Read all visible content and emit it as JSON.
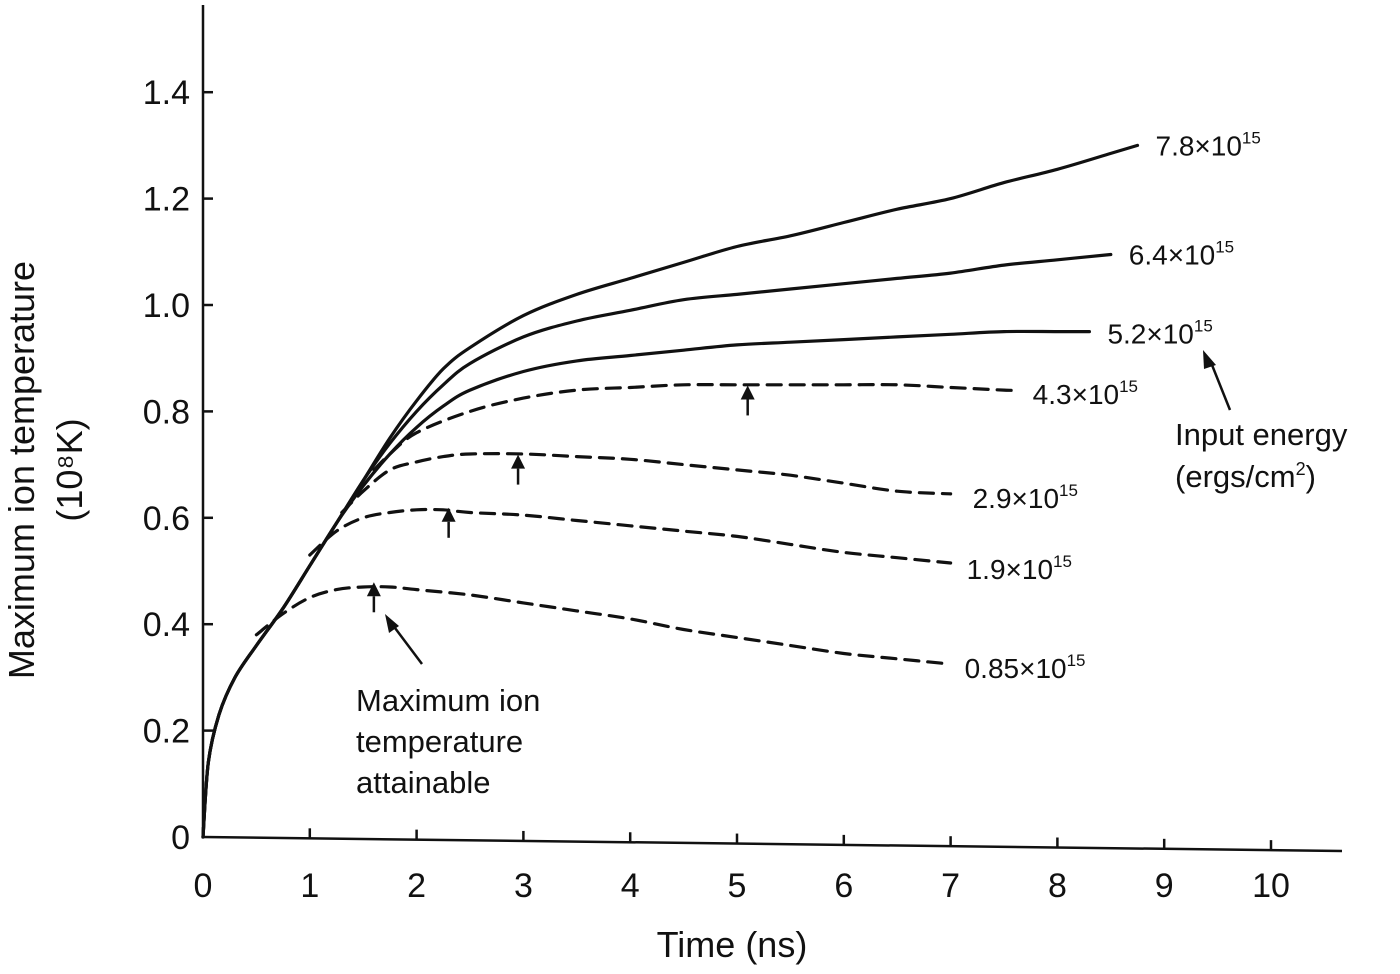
{
  "chart_data": {
    "type": "line",
    "title": "",
    "xlabel": "Time (ns)",
    "ylabel_lines": [
      "Maximum ion temperature",
      "(10⁸K)"
    ],
    "xlim": [
      0,
      10.7
    ],
    "ylim": [
      0,
      1.55
    ],
    "x_ticks": [
      0,
      1,
      2,
      3,
      4,
      5,
      6,
      7,
      8,
      9,
      10
    ],
    "y_ticks": [
      0,
      0.2,
      0.4,
      0.6,
      0.8,
      1.0,
      1.2,
      1.4
    ],
    "y_tick_labels": [
      "0",
      "0.2",
      "0.4",
      "0.6",
      "0.8",
      "1.0",
      "1.2",
      "1.4"
    ],
    "grid": false,
    "series": [
      {
        "name": "7.8×10¹⁵",
        "label_base": "7.8×10",
        "label_exp": "15",
        "style": "solid",
        "x": [
          0,
          0.05,
          0.15,
          0.3,
          0.5,
          0.75,
          1.0,
          1.25,
          1.5,
          1.75,
          2.0,
          2.25,
          2.5,
          3.0,
          3.5,
          4.0,
          4.5,
          5.0,
          5.5,
          6.0,
          6.5,
          7.0,
          7.5,
          8.0,
          8.5,
          8.75
        ],
        "y": [
          0,
          0.14,
          0.23,
          0.3,
          0.36,
          0.43,
          0.51,
          0.59,
          0.67,
          0.75,
          0.82,
          0.88,
          0.92,
          0.98,
          1.02,
          1.05,
          1.08,
          1.11,
          1.13,
          1.155,
          1.18,
          1.2,
          1.23,
          1.255,
          1.285,
          1.3
        ]
      },
      {
        "name": "6.4×10¹⁵",
        "label_base": "6.4×10",
        "label_exp": "15",
        "style": "solid",
        "x": [
          0,
          0.05,
          0.15,
          0.3,
          0.5,
          0.75,
          1.0,
          1.25,
          1.5,
          1.75,
          2.0,
          2.25,
          2.5,
          3.0,
          3.5,
          4.0,
          4.5,
          5.0,
          5.5,
          6.0,
          6.5,
          7.0,
          7.5,
          8.0,
          8.5
        ],
        "y": [
          0,
          0.14,
          0.23,
          0.3,
          0.36,
          0.43,
          0.51,
          0.59,
          0.67,
          0.74,
          0.8,
          0.85,
          0.89,
          0.94,
          0.97,
          0.99,
          1.01,
          1.02,
          1.03,
          1.04,
          1.05,
          1.06,
          1.075,
          1.085,
          1.095
        ]
      },
      {
        "name": "5.2×10¹⁵",
        "label_base": "5.2×10",
        "label_exp": "15",
        "style": "solid",
        "x": [
          0,
          0.05,
          0.15,
          0.3,
          0.5,
          0.75,
          1.0,
          1.25,
          1.5,
          1.75,
          2.0,
          2.25,
          2.5,
          3.0,
          3.5,
          4.0,
          4.5,
          5.0,
          5.5,
          6.0,
          6.5,
          7.0,
          7.5,
          8.0,
          8.3
        ],
        "y": [
          0,
          0.14,
          0.23,
          0.3,
          0.36,
          0.43,
          0.51,
          0.59,
          0.66,
          0.72,
          0.77,
          0.81,
          0.84,
          0.875,
          0.895,
          0.905,
          0.915,
          0.925,
          0.93,
          0.935,
          0.94,
          0.945,
          0.95,
          0.95,
          0.95
        ]
      },
      {
        "name": "4.3×10¹⁵",
        "label_base": "4.3×10",
        "label_exp": "15",
        "style": "dashed",
        "x": [
          1.6,
          1.75,
          2.0,
          2.5,
          3.0,
          3.5,
          4.0,
          4.5,
          5.0,
          5.5,
          6.0,
          6.5,
          7.0,
          7.5,
          7.6
        ],
        "y": [
          0.69,
          0.72,
          0.76,
          0.8,
          0.825,
          0.84,
          0.845,
          0.85,
          0.85,
          0.85,
          0.85,
          0.85,
          0.845,
          0.84,
          0.84
        ]
      },
      {
        "name": "2.9×10¹⁵",
        "label_base": "2.9×10",
        "label_exp": "15",
        "style": "dashed",
        "x": [
          1.3,
          1.5,
          1.75,
          2.0,
          2.25,
          2.5,
          3.0,
          3.5,
          4.0,
          4.5,
          5.0,
          5.5,
          6.0,
          6.5,
          7.0
        ],
        "y": [
          0.61,
          0.65,
          0.69,
          0.705,
          0.715,
          0.72,
          0.72,
          0.715,
          0.71,
          0.7,
          0.69,
          0.68,
          0.665,
          0.65,
          0.645
        ]
      },
      {
        "name": "1.9×10¹⁵",
        "label_base": "1.9×10",
        "label_exp": "15",
        "style": "dashed",
        "x": [
          1.0,
          1.25,
          1.5,
          1.75,
          2.0,
          2.25,
          2.5,
          3.0,
          3.5,
          4.0,
          4.5,
          5.0,
          5.5,
          6.0,
          6.5,
          7.0
        ],
        "y": [
          0.53,
          0.575,
          0.6,
          0.61,
          0.615,
          0.615,
          0.61,
          0.605,
          0.595,
          0.585,
          0.575,
          0.565,
          0.55,
          0.535,
          0.525,
          0.515
        ]
      },
      {
        "name": "0.85×10¹⁵",
        "label_base": "0.85×10",
        "label_exp": "15",
        "style": "dashed",
        "x": [
          0.5,
          0.75,
          1.0,
          1.25,
          1.5,
          1.75,
          2.0,
          2.5,
          3.0,
          3.5,
          4.0,
          4.5,
          5.0,
          5.5,
          6.0,
          6.5,
          7.0
        ],
        "y": [
          0.38,
          0.42,
          0.45,
          0.465,
          0.47,
          0.47,
          0.465,
          0.455,
          0.44,
          0.425,
          0.41,
          0.39,
          0.375,
          0.36,
          0.345,
          0.335,
          0.325
        ]
      }
    ],
    "markers": [
      {
        "x": 1.6,
        "y": 0.46
      },
      {
        "x": 2.3,
        "y": 0.6
      },
      {
        "x": 2.95,
        "y": 0.7
      },
      {
        "x": 5.1,
        "y": 0.83
      }
    ],
    "annotations": {
      "input_energy_lines": [
        "Input energy",
        "(ergs/cm",
        "2",
        ")"
      ],
      "max_ion_lines": [
        "Maximum ion",
        "temperature",
        "attainable"
      ]
    }
  }
}
